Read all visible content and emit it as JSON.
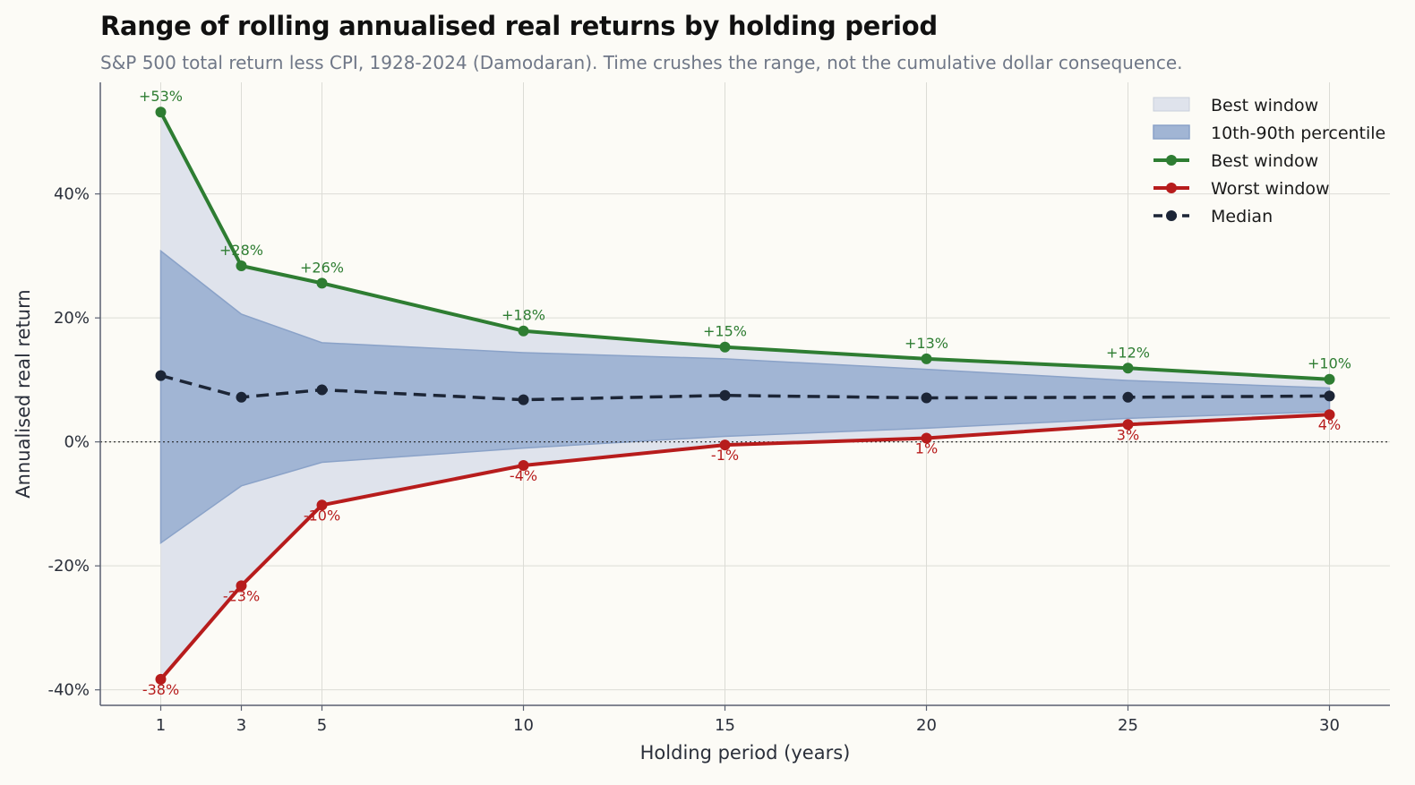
{
  "header": {
    "title": "Range of rolling annualised real returns by holding period",
    "subtitle": "S&P 500 total return less CPI, 1928-2024 (Damodaran). Time crushes the range, not the cumulative dollar consequence."
  },
  "colors": {
    "best": "#2e7d32",
    "worst": "#b71c1c",
    "median": "#1c2536",
    "band_outer": "#dfe3ec",
    "band_inner": "#a1b5d4",
    "band_inner_edge": "#8aa2c8",
    "grid": "#dcdcd6",
    "axis": "#5a6070"
  },
  "legend": {
    "placement": "top-right",
    "items": [
      {
        "label": "Best window",
        "kind": "fill-outer"
      },
      {
        "label": "10th-90th percentile",
        "kind": "fill-inner"
      },
      {
        "label": "Best window",
        "kind": "line-best"
      },
      {
        "label": "Worst window",
        "kind": "line-worst"
      },
      {
        "label": "Median",
        "kind": "line-median"
      }
    ]
  },
  "chart_data": {
    "type": "line",
    "xlabel": "Holding period (years)",
    "ylabel": "Annualised real return",
    "x": [
      1,
      3,
      5,
      10,
      15,
      20,
      25,
      30
    ],
    "xticks": [
      1,
      3,
      5,
      10,
      15,
      20,
      25,
      30
    ],
    "xlim": [
      -0.5,
      31.5
    ],
    "ylim": [
      -42.5,
      58
    ],
    "yticks": [
      -40,
      -20,
      0,
      20,
      40
    ],
    "ytick_labels": [
      "-40%",
      "-20%",
      "0%",
      "20%",
      "40%"
    ],
    "grid": true,
    "zero_line": true,
    "series": [
      {
        "name": "Best window",
        "key": "best",
        "values": [
          53.2,
          28.4,
          25.6,
          17.9,
          15.3,
          13.4,
          11.9,
          10.1
        ],
        "labels": [
          "+53%",
          "+28%",
          "+26%",
          "+18%",
          "+15%",
          "+13%",
          "+12%",
          "+10%"
        ]
      },
      {
        "name": "Worst window",
        "key": "worst",
        "values": [
          -38.3,
          -23.2,
          -10.2,
          -3.8,
          -0.5,
          0.6,
          2.8,
          4.4
        ],
        "labels": [
          "-38%",
          "-23%",
          "-10%",
          "-4%",
          "-1%",
          "1%",
          "3%",
          "4%"
        ]
      },
      {
        "name": "Median",
        "key": "median",
        "values": [
          10.7,
          7.2,
          8.4,
          6.8,
          7.5,
          7.1,
          7.2,
          7.4
        ]
      }
    ],
    "bands": [
      {
        "name": "Best window",
        "key": "outer",
        "upper_series": "best",
        "lower_series": "worst"
      },
      {
        "name": "10th-90th percentile",
        "key": "inner",
        "upper": [
          30.8,
          20.6,
          16.0,
          14.4,
          13.4,
          11.7,
          9.9,
          8.7
        ],
        "lower": [
          -16.3,
          -7.1,
          -3.3,
          -1.0,
          0.9,
          2.2,
          3.8,
          4.9
        ]
      }
    ]
  }
}
